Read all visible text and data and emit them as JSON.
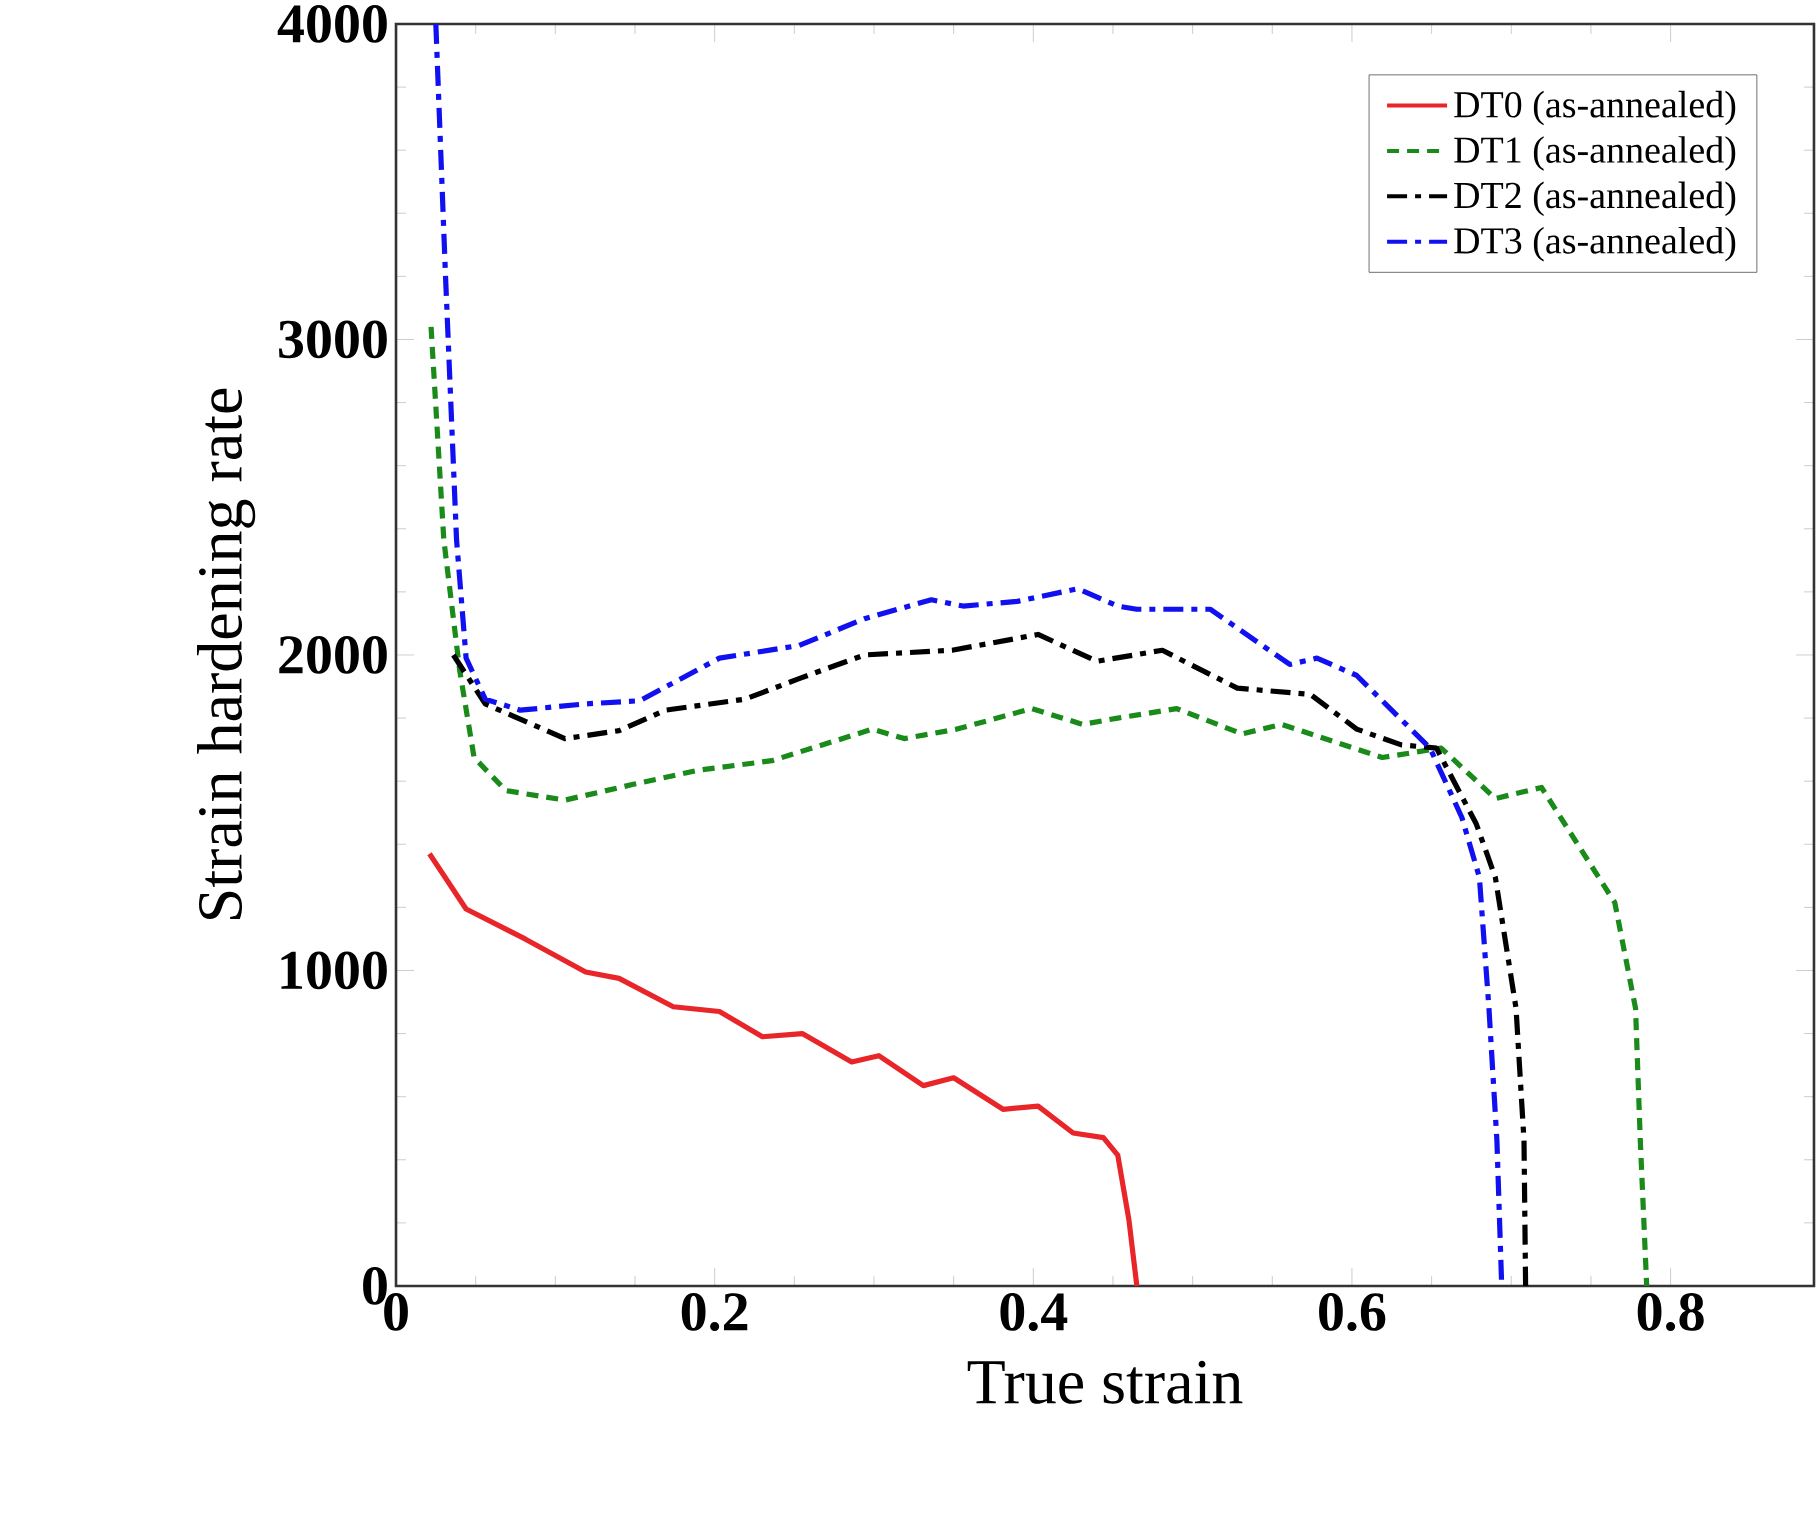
{
  "chart_data": {
    "type": "line",
    "xlabel": "True strain",
    "ylabel": "Strain hardening rate",
    "xlim": [
      0,
      0.89
    ],
    "ylim": [
      0,
      4000
    ],
    "xticks": [
      0,
      0.2,
      0.4,
      0.6,
      0.8
    ],
    "yticks": [
      0,
      1000,
      2000,
      3000,
      4000
    ],
    "legend": "top right",
    "marker": "none",
    "series": [
      {
        "name": "DT0 (as-annealed)",
        "color": "#e8262a",
        "line_style": "solid",
        "x": [
          0.021,
          0.044,
          0.081,
          0.119,
          0.14,
          0.174,
          0.203,
          0.23,
          0.255,
          0.286,
          0.303,
          0.331,
          0.35,
          0.381,
          0.403,
          0.425,
          0.444,
          0.453,
          0.46,
          0.465
        ],
        "values": [
          1370,
          1195,
          1100,
          995,
          975,
          885,
          870,
          790,
          800,
          710,
          730,
          635,
          660,
          560,
          570,
          485,
          470,
          415,
          210,
          0
        ]
      },
      {
        "name": "DT1 (as-annealed)",
        "color": "#1a8a1a",
        "line_style": "dashed",
        "x": [
          0.022,
          0.03,
          0.04,
          0.049,
          0.069,
          0.106,
          0.149,
          0.19,
          0.236,
          0.299,
          0.319,
          0.352,
          0.399,
          0.431,
          0.453,
          0.49,
          0.531,
          0.556,
          0.619,
          0.656,
          0.69,
          0.719,
          0.765,
          0.778,
          0.781,
          0.785
        ],
        "values": [
          3040,
          2365,
          1950,
          1675,
          1570,
          1540,
          1590,
          1635,
          1665,
          1765,
          1735,
          1765,
          1830,
          1780,
          1800,
          1830,
          1750,
          1780,
          1675,
          1705,
          1545,
          1580,
          1215,
          880,
          460,
          0
        ]
      },
      {
        "name": "DT2 (as-annealed)",
        "color": "#000000",
        "line_style": "dashdot",
        "x": [
          0.036,
          0.056,
          0.106,
          0.14,
          0.169,
          0.219,
          0.253,
          0.294,
          0.349,
          0.403,
          0.44,
          0.481,
          0.528,
          0.574,
          0.603,
          0.631,
          0.653,
          0.678,
          0.69,
          0.703,
          0.708,
          0.709
        ],
        "values": [
          2000,
          1845,
          1735,
          1760,
          1825,
          1860,
          1925,
          2000,
          2015,
          2065,
          1980,
          2015,
          1895,
          1875,
          1765,
          1715,
          1705,
          1465,
          1295,
          880,
          460,
          0
        ]
      },
      {
        "name": "DT3 (as-annealed)",
        "color": "#1010f0",
        "line_style": "dashdot",
        "x": [
          0.025,
          0.031,
          0.038,
          0.044,
          0.056,
          0.078,
          0.119,
          0.153,
          0.203,
          0.253,
          0.294,
          0.336,
          0.356,
          0.39,
          0.428,
          0.453,
          0.465,
          0.511,
          0.561,
          0.578,
          0.603,
          0.649,
          0.669,
          0.68,
          0.686,
          0.691,
          0.694
        ],
        "values": [
          4000,
          3210,
          2365,
          1990,
          1860,
          1825,
          1845,
          1855,
          1990,
          2030,
          2115,
          2175,
          2155,
          2170,
          2210,
          2155,
          2145,
          2145,
          1970,
          1990,
          1935,
          1705,
          1485,
          1295,
          880,
          460,
          0
        ]
      }
    ]
  }
}
